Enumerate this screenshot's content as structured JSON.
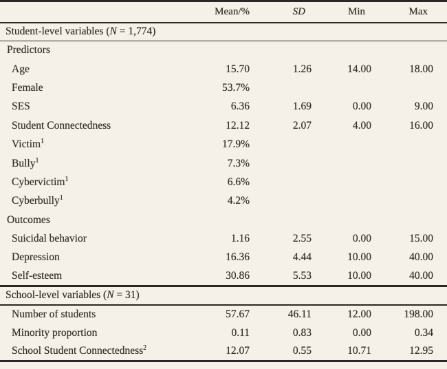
{
  "colors": {
    "background": "#f6f1e8",
    "text": "#37332a",
    "rule": "#2b2823"
  },
  "table": {
    "header": {
      "mean": "Mean/%",
      "sd": "SD",
      "min": "Min",
      "max": "Max"
    },
    "rows": [
      {
        "type": "section",
        "pre": "Student-level variables (",
        "n": "N",
        "post": " = 1,774)"
      },
      {
        "type": "group",
        "label": "Predictors"
      },
      {
        "type": "data",
        "label": "Age",
        "mean": "15.70",
        "sd": "1.26",
        "min": "14.00",
        "max": "18.00"
      },
      {
        "type": "data",
        "label": "Female",
        "mean": "53.7%",
        "sd": "",
        "min": "",
        "max": ""
      },
      {
        "type": "data",
        "label": "SES",
        "mean": "6.36",
        "sd": "1.69",
        "min": "0.00",
        "max": "9.00"
      },
      {
        "type": "data",
        "label": "Student Connectedness",
        "mean": "12.12",
        "sd": "2.07",
        "min": "4.00",
        "max": "16.00"
      },
      {
        "type": "data",
        "label": "Victim",
        "sup": "1",
        "mean": "17.9%",
        "sd": "",
        "min": "",
        "max": ""
      },
      {
        "type": "data",
        "label": "Bully",
        "sup": "1",
        "mean": "7.3%",
        "sd": "",
        "min": "",
        "max": ""
      },
      {
        "type": "data",
        "label": "Cybervictim",
        "sup": "1",
        "mean": "6.6%",
        "sd": "",
        "min": "",
        "max": ""
      },
      {
        "type": "data",
        "label": "Cyberbully",
        "sup": "1",
        "mean": "4.2%",
        "sd": "",
        "min": "",
        "max": ""
      },
      {
        "type": "group",
        "label": "Outcomes"
      },
      {
        "type": "data",
        "label": "Suicidal behavior",
        "mean": "1.16",
        "sd": "2.55",
        "min": "0.00",
        "max": "15.00"
      },
      {
        "type": "data",
        "label": "Depression",
        "mean": "16.36",
        "sd": "4.44",
        "min": "10.00",
        "max": "40.00"
      },
      {
        "type": "data",
        "label": "Self-esteem",
        "mean": "30.86",
        "sd": "5.53",
        "min": "10.00",
        "max": "40.00"
      },
      {
        "type": "section",
        "pre": "School-level variables (",
        "n": "N",
        "post": " = 31)"
      },
      {
        "type": "data",
        "label": "Number of students",
        "mean": "57.67",
        "sd": "46.11",
        "min": "12.00",
        "max": "198.00"
      },
      {
        "type": "data",
        "label": "Minority proportion",
        "mean": "0.11",
        "sd": "0.83",
        "min": "0.00",
        "max": "0.34"
      },
      {
        "type": "data",
        "label": "School Student Connectedness",
        "sup": "2",
        "mean": "12.07",
        "sd": "0.55",
        "min": "10.71",
        "max": "12.95"
      }
    ]
  }
}
